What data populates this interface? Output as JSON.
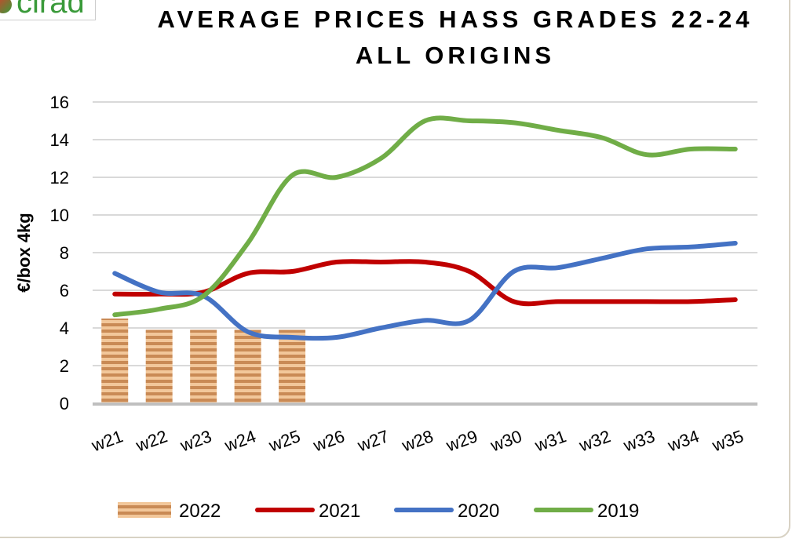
{
  "logo_text": "cirad",
  "chart_data": {
    "type": "bar+line",
    "title": "AVERAGE PRICES HASS GRADES 22-24",
    "subtitle": "ALL ORIGINS",
    "ylabel": "€/box 4kg",
    "xlabel": "",
    "ylim": [
      0,
      16
    ],
    "yticks": [
      0,
      2,
      4,
      6,
      8,
      10,
      12,
      14,
      16
    ],
    "grid": true,
    "legend_position": "bottom",
    "categories": [
      "w21",
      "w22",
      "w23",
      "w24",
      "w25",
      "w26",
      "w27",
      "w28",
      "w29",
      "w30",
      "w31",
      "w32",
      "w33",
      "w34",
      "w35"
    ],
    "series": [
      {
        "name": "2022",
        "type": "bar",
        "color": "#d9955f",
        "values": [
          4.5,
          3.9,
          3.9,
          3.9,
          3.9,
          null,
          null,
          null,
          null,
          null,
          null,
          null,
          null,
          null,
          null
        ]
      },
      {
        "name": "2021",
        "type": "line",
        "color": "#c00000",
        "values": [
          5.8,
          5.8,
          5.9,
          6.9,
          7.0,
          7.5,
          7.5,
          7.5,
          7.0,
          5.4,
          5.4,
          5.4,
          5.4,
          5.4,
          5.5
        ]
      },
      {
        "name": "2020",
        "type": "line",
        "color": "#4472c4",
        "values": [
          6.9,
          5.9,
          5.7,
          3.8,
          3.5,
          3.5,
          4.0,
          4.4,
          4.4,
          7.0,
          7.2,
          7.7,
          8.2,
          8.3,
          8.5
        ]
      },
      {
        "name": "2019",
        "type": "line",
        "color": "#70ad47",
        "values": [
          4.7,
          5.0,
          5.7,
          8.5,
          12.1,
          12.0,
          13.0,
          15.0,
          15.0,
          14.9,
          14.5,
          14.1,
          13.2,
          13.5,
          13.5
        ]
      }
    ]
  }
}
